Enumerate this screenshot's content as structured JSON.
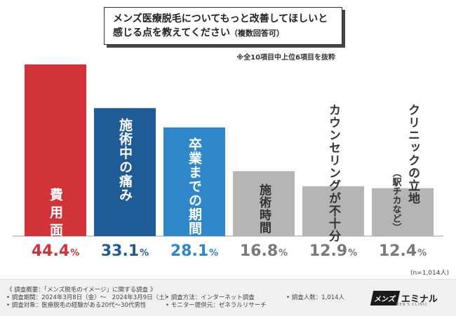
{
  "title": {
    "line1": "メンズ医療脱毛についてもっと改善してほしいと",
    "line2": "感じる点を教えてください",
    "sub": "（複数回答可）"
  },
  "note": "※全10項目中上位6項目を抜粋",
  "sample_size": "(n=1,014人)",
  "chart_data": {
    "type": "bar",
    "categories": [
      "費用面",
      "施術中の痛み",
      "卒業までの期間",
      "施術時間",
      "カウンセリングが不十分",
      "クリニックの立地（駅チカなど）"
    ],
    "values": [
      44.4,
      33.1,
      28.1,
      16.8,
      12.9,
      12.4
    ],
    "value_labels": [
      {
        "num": "44.4",
        "unit": "%"
      },
      {
        "num": "33.1",
        "unit": "%"
      },
      {
        "num": "28.1",
        "unit": "%"
      },
      {
        "num": "16.8",
        "unit": "%"
      },
      {
        "num": "12.9",
        "unit": "%"
      },
      {
        "num": "12.4",
        "unit": "%"
      }
    ],
    "bar_labels": [
      {
        "main": "費用面",
        "paren": ""
      },
      {
        "main": "施術中の痛み",
        "paren": ""
      },
      {
        "main": "卒業までの期間",
        "paren": ""
      },
      {
        "main": "施術時間",
        "paren": ""
      },
      {
        "main": "カウンセリングが不十分",
        "paren": ""
      },
      {
        "main": "クリニックの立地",
        "paren": "（駅チカなど）"
      }
    ],
    "colors": [
      "#d0333a",
      "#1f5b96",
      "#2f86c9",
      "#b5b5b5",
      "#b5b5b5",
      "#b5b5b5"
    ],
    "value_colors": [
      "#d0333a",
      "#1f5b96",
      "#2f86c9",
      "#7a7a7a",
      "#7a7a7a",
      "#7a7a7a"
    ],
    "ylim": [
      0,
      50
    ],
    "unit": "%"
  },
  "footer": {
    "col1": [
      "《 調査概要：「メンズ脱毛のイメージ」に関する調査 》",
      "• 調査期間：2024年3月8日（金）～　2024年3月9日（土）",
      "• 調査対象：医療脱毛の経験がある20代～30代男性"
    ],
    "col2": [
      "• 調査方法：インターネット調査",
      "• モニター提供元：ゼネラルリサーチ"
    ],
    "col3": [
      "• 調査人数：1,014人"
    ]
  },
  "logo": {
    "box": "メンズ",
    "text": "エミナル",
    "tag": "MEN'S CLINIC"
  }
}
